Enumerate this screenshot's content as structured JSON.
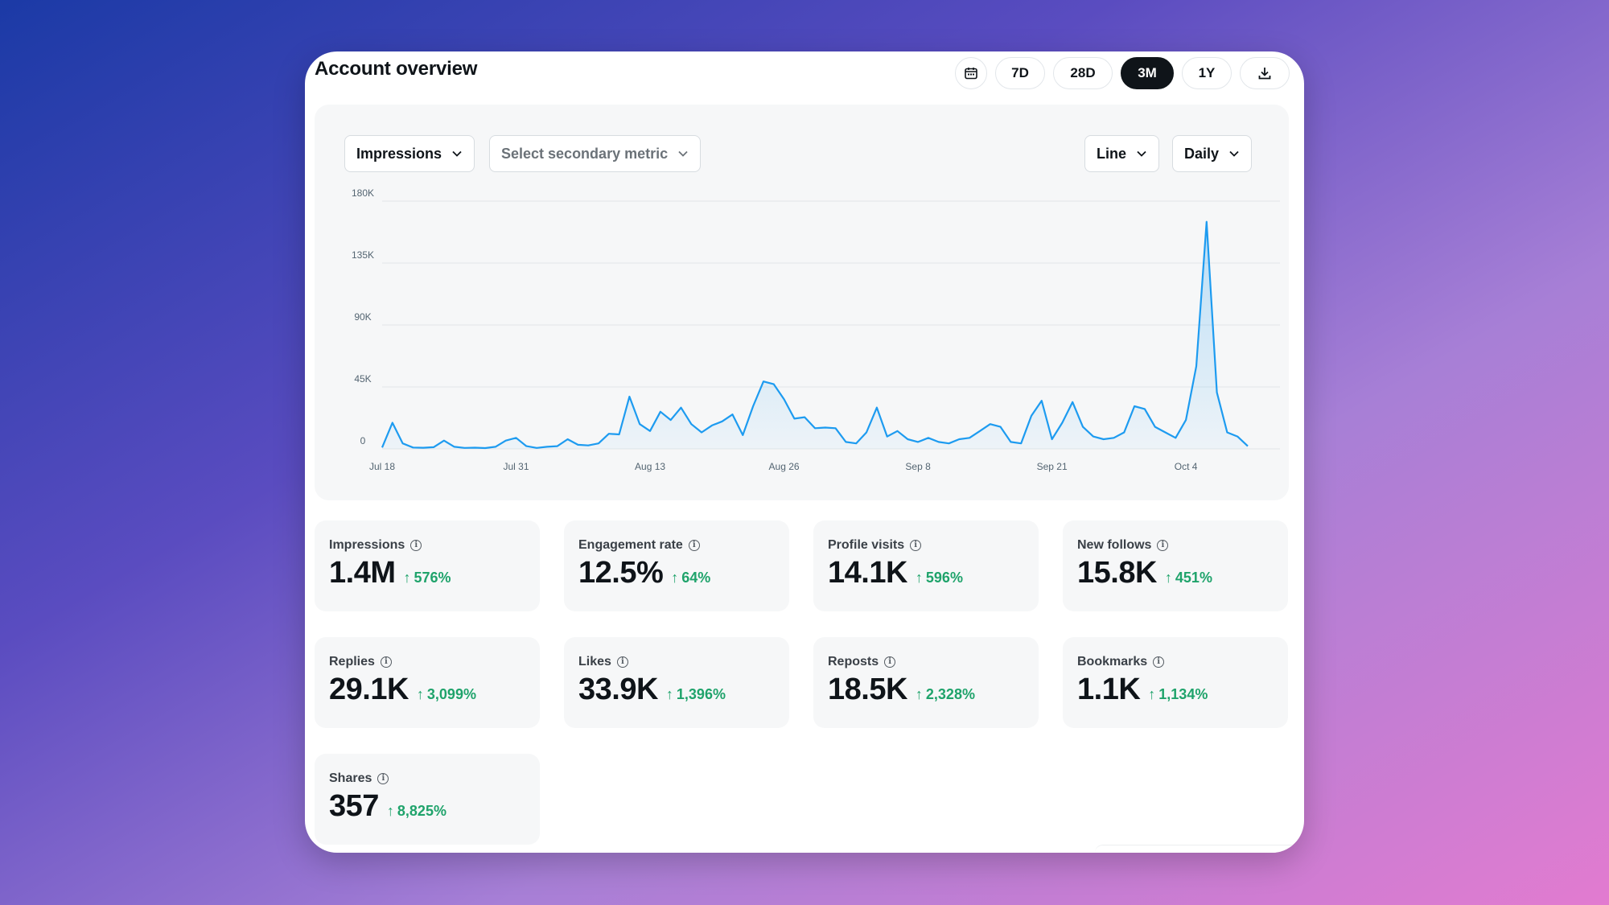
{
  "header": {
    "title": "Account overview",
    "ranges": [
      "7D",
      "28D",
      "3M",
      "1Y"
    ],
    "active_range": "3M"
  },
  "controls": {
    "primary_metric": "Impressions",
    "secondary_metric_placeholder": "Select secondary metric",
    "chart_type": "Line",
    "granularity": "Daily"
  },
  "colors": {
    "accent": "#1d9bf0",
    "positive": "#1fa36b",
    "active_pill": "#0f1419"
  },
  "icons": {
    "calendar": "calendar-icon",
    "download": "download-icon",
    "info": "info-icon",
    "arrow_up": "arrow-up-icon"
  },
  "chart_data": {
    "type": "area",
    "series": [
      {
        "values": [
          1000,
          19000,
          4000,
          1000,
          800,
          1200,
          6000,
          1500,
          700,
          900,
          600,
          1500,
          6000,
          8000,
          2000,
          700,
          1500,
          2000,
          7000,
          3000,
          2500,
          4000,
          11000,
          10500,
          38000,
          18000,
          13000,
          27000,
          21000,
          30000,
          18000,
          12000,
          17000,
          20000,
          25000,
          10000,
          31000,
          49000,
          47000,
          36000,
          22000,
          23000,
          15000,
          15500,
          15000,
          5000,
          4000,
          12000,
          30000,
          9000,
          13000,
          7000,
          5000,
          8000,
          5000,
          4000,
          7000,
          8000,
          13000,
          18000,
          16000,
          5000,
          4000,
          24000,
          35000,
          7000,
          19000,
          34000,
          16000,
          9000,
          7000,
          8000,
          12000,
          31000,
          29000,
          16000,
          12000,
          8000,
          21000,
          60000,
          165000,
          41000,
          12000,
          9000,
          2000
        ]
      }
    ],
    "x_tick_labels": [
      "Jul 18",
      "Jul 31",
      "Aug 13",
      "Aug 26",
      "Sep 8",
      "Sep 21",
      "Oct 4"
    ],
    "y_tick_labels": [
      "180K",
      "135K",
      "90K",
      "45K",
      "0"
    ],
    "ylim": [
      0,
      180000
    ],
    "grid": true
  },
  "stats": [
    {
      "label": "Impressions",
      "value": "1.4M",
      "change": "576%"
    },
    {
      "label": "Engagement rate",
      "value": "12.5%",
      "change": "64%"
    },
    {
      "label": "Profile visits",
      "value": "14.1K",
      "change": "596%"
    },
    {
      "label": "New follows",
      "value": "15.8K",
      "change": "451%"
    },
    {
      "label": "Replies",
      "value": "29.1K",
      "change": "3,099%"
    },
    {
      "label": "Likes",
      "value": "33.9K",
      "change": "1,396%"
    },
    {
      "label": "Reposts",
      "value": "18.5K",
      "change": "2,328%"
    },
    {
      "label": "Bookmarks",
      "value": "1.1K",
      "change": "1,134%"
    },
    {
      "label": "Shares",
      "value": "357",
      "change": "8,825%"
    }
  ]
}
